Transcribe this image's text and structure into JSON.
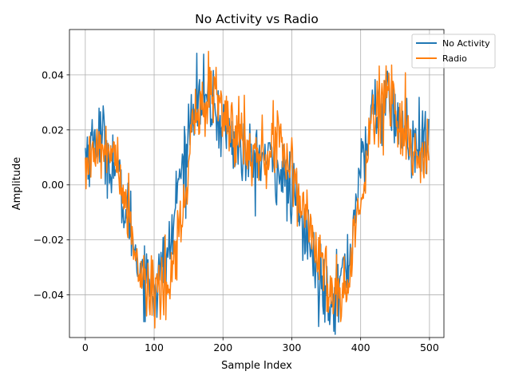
{
  "chart_data": {
    "type": "line",
    "title": "No Activity vs Radio",
    "xlabel": "Sample Index",
    "ylabel": "Amplitude",
    "xlim": [
      -23,
      521
    ],
    "ylim": [
      -0.0555,
      0.0565
    ],
    "xticks": [
      0,
      100,
      200,
      300,
      400,
      500
    ],
    "yticks": [
      -0.04,
      -0.02,
      0.0,
      0.02,
      0.04
    ],
    "xtick_labels": [
      "0",
      "100",
      "200",
      "300",
      "400",
      "500"
    ],
    "ytick_labels": [
      "−0.04",
      "−0.02",
      "0.00",
      "0.02",
      "0.04"
    ],
    "grid": true,
    "legend_position": "top-right",
    "n_points": 500,
    "series": [
      {
        "name": "No Activity",
        "color": "#1f77b4",
        "x": [
          0,
          20,
          40,
          60,
          80,
          100,
          120,
          140,
          160,
          180,
          200,
          220,
          240,
          260,
          280,
          300,
          320,
          340,
          360,
          380,
          400,
          420,
          440,
          460,
          480,
          499
        ],
        "y": [
          0.012,
          0.018,
          0.008,
          -0.01,
          -0.03,
          -0.038,
          -0.025,
          0.005,
          0.032,
          0.03,
          0.022,
          0.014,
          0.008,
          0.01,
          0.006,
          -0.003,
          -0.018,
          -0.035,
          -0.04,
          -0.03,
          0.005,
          0.028,
          0.03,
          0.02,
          0.012,
          0.015
        ],
        "noise": 0.0065
      },
      {
        "name": "Radio",
        "color": "#ff7f0e",
        "x": [
          0,
          20,
          40,
          60,
          80,
          100,
          120,
          140,
          160,
          180,
          200,
          220,
          240,
          260,
          280,
          300,
          320,
          340,
          360,
          380,
          400,
          420,
          440,
          460,
          480,
          499
        ],
        "y": [
          0.008,
          0.014,
          0.01,
          -0.008,
          -0.03,
          -0.038,
          -0.038,
          -0.01,
          0.025,
          0.035,
          0.025,
          0.018,
          0.012,
          0.012,
          0.014,
          0.003,
          -0.01,
          -0.03,
          -0.04,
          -0.035,
          -0.005,
          0.025,
          0.035,
          0.02,
          0.01,
          0.012
        ],
        "noise": 0.0065
      }
    ]
  }
}
